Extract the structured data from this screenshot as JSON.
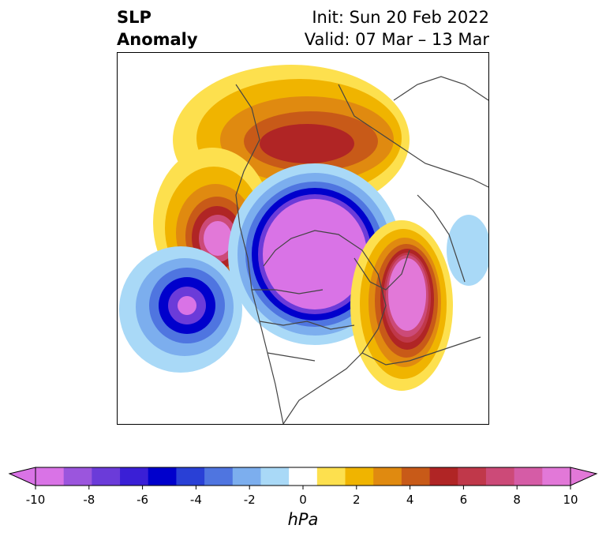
{
  "title": {
    "left_line1": "SLP",
    "left_line2": "Anomaly",
    "right_line1": "Init: Sun 20 Feb 2022",
    "right_line2": "Valid: 07 Mar – 13 Mar"
  },
  "map": {
    "projection": "north-polar-stereographic",
    "anomalies": [
      {
        "feature": "Greenland / Arctic",
        "sign": "positive",
        "peak_hPa": 6
      },
      {
        "feature": "Gulf of Alaska",
        "sign": "positive",
        "peak_hPa": 10
      },
      {
        "feature": "North Pacific",
        "sign": "negative",
        "peak_hPa": -10
      },
      {
        "feature": "Arctic Ocean / Siberia",
        "sign": "negative",
        "peak_hPa": -10
      },
      {
        "feature": "Northwest Europe / Norwegian Sea",
        "sign": "positive",
        "peak_hPa": 10
      },
      {
        "feature": "Eastern Europe / Russia",
        "sign": "negative",
        "peak_hPa": -2
      }
    ]
  },
  "colorbar": {
    "unit": "hPa",
    "ticks": [
      "-10",
      "-8",
      "-6",
      "-4",
      "-2",
      "0",
      "2",
      "4",
      "6",
      "8",
      "10"
    ],
    "colors": [
      "#d973e6",
      "#9b55dd",
      "#6b3bd9",
      "#3a1fd6",
      "#0000cc",
      "#2940d6",
      "#4f75e0",
      "#7caeee",
      "#a9d9f7",
      "#ffffff",
      "#fde04e",
      "#f0b400",
      "#e08a10",
      "#c85a18",
      "#b02525",
      "#c0384a",
      "#cc4a78",
      "#d55ca6",
      "#e278d8"
    ],
    "min": -10,
    "max": 10,
    "extend": "both"
  }
}
